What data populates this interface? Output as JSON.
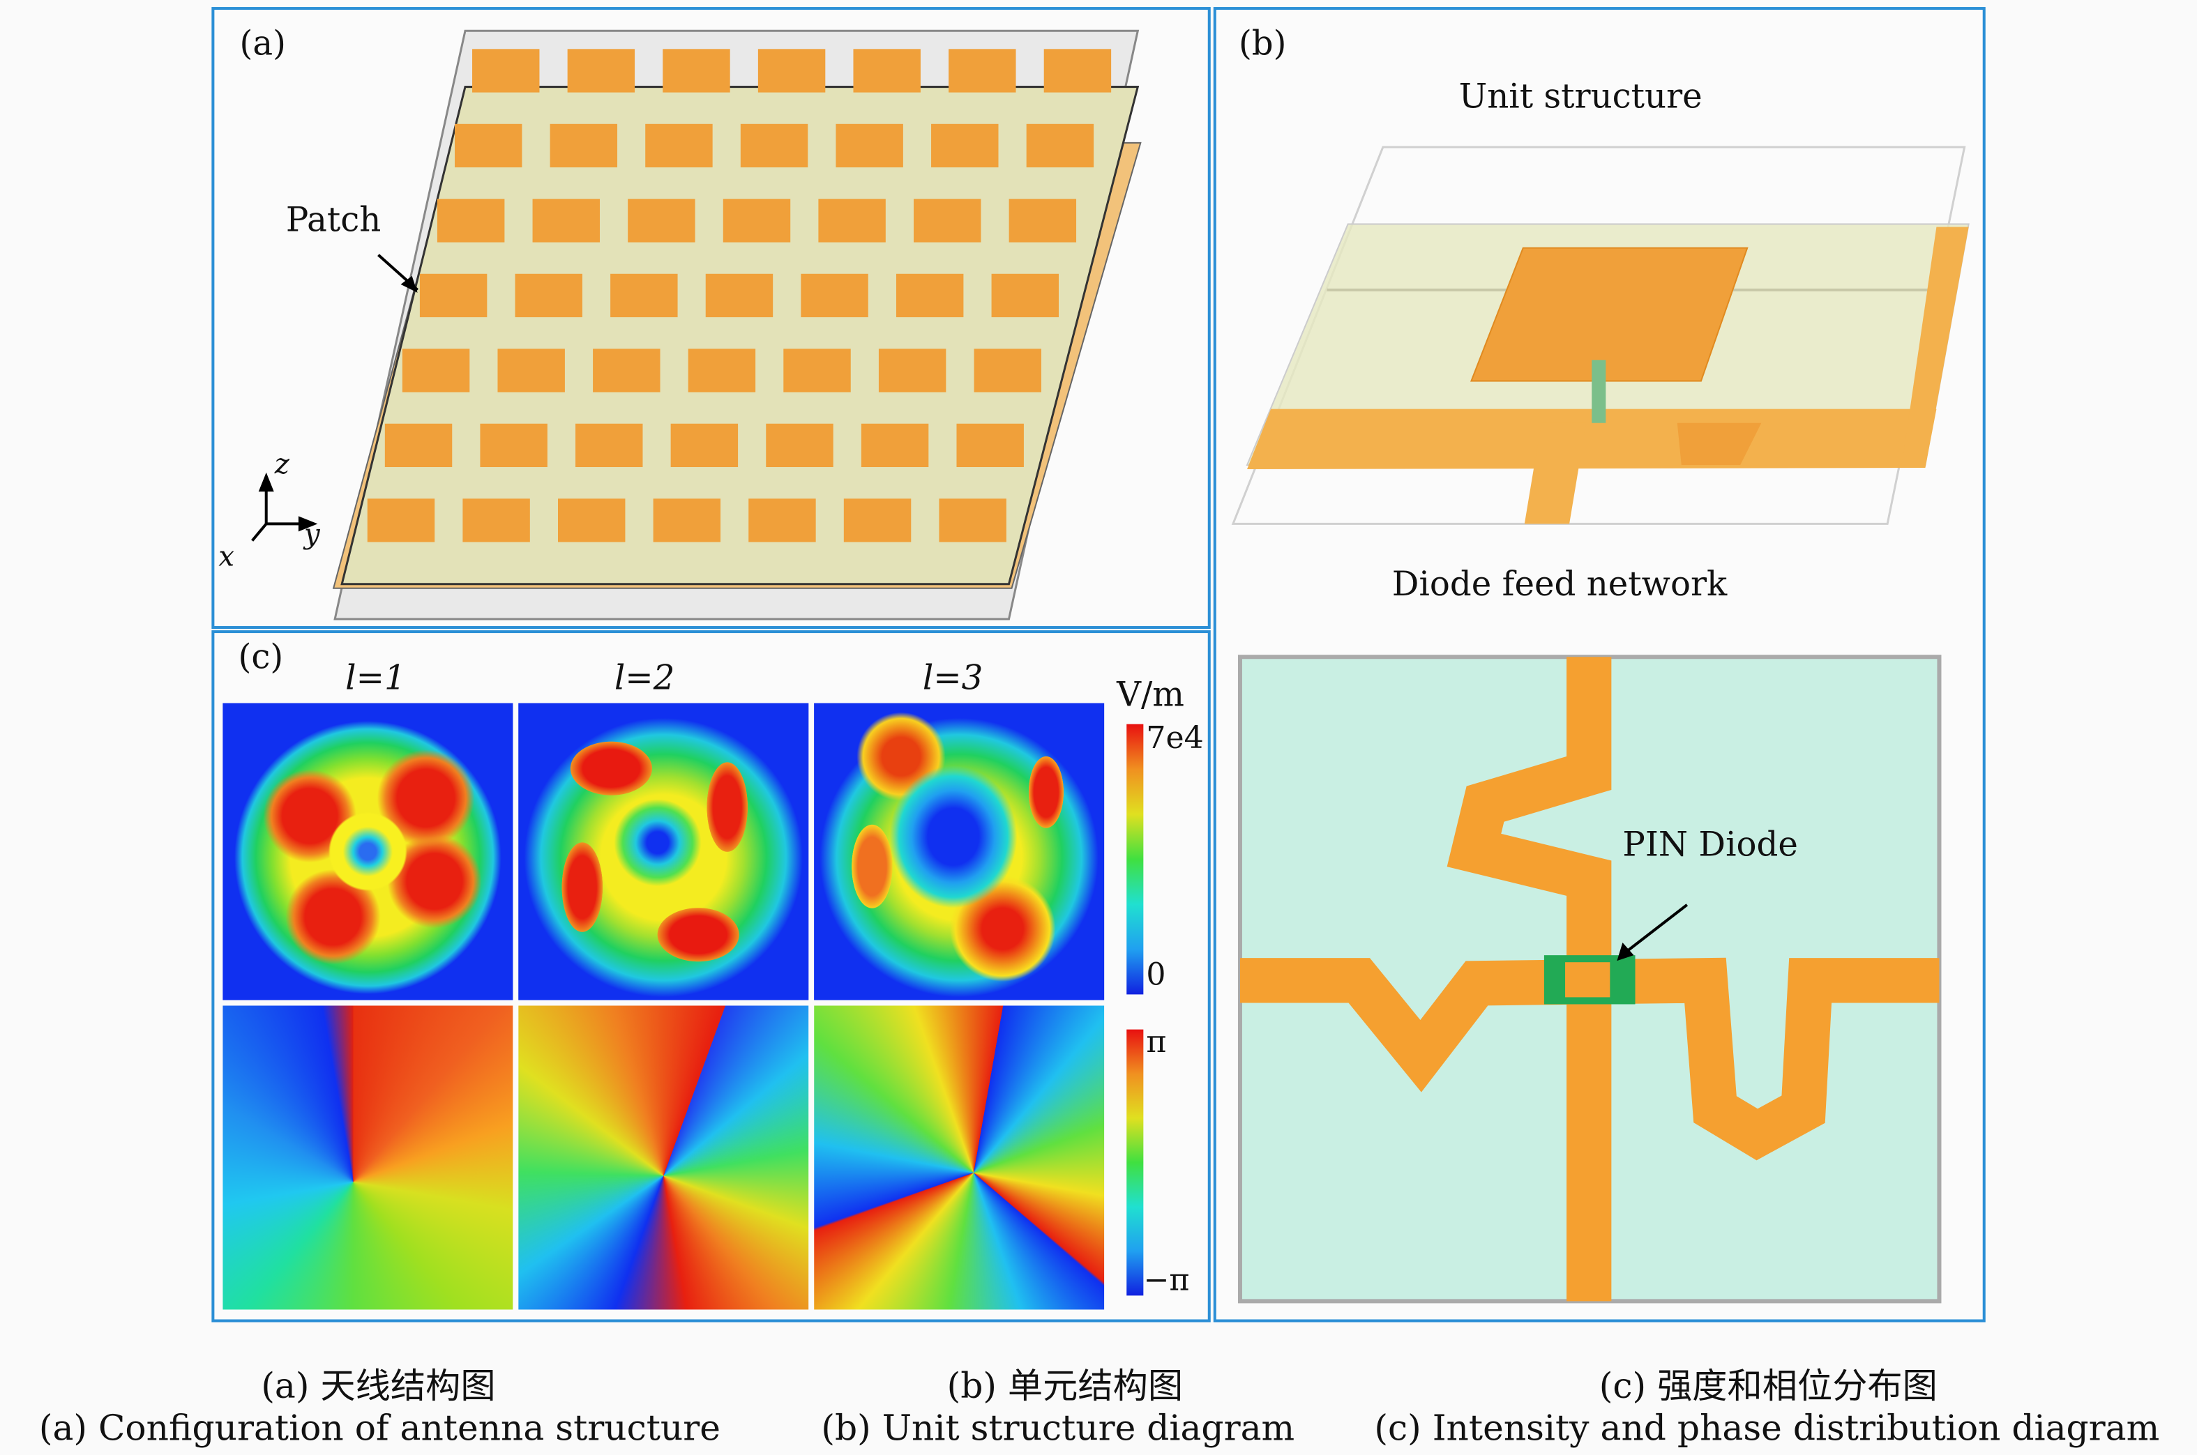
{
  "panel_a": {
    "label": "(a)",
    "patch_label": "Patch",
    "axes": {
      "x": "x",
      "y": "y",
      "z": "z"
    },
    "patch_grid": {
      "rows": 7,
      "cols": 7
    }
  },
  "panel_b": {
    "label": "(b)",
    "unit_structure_title": "Unit structure",
    "feed_network_title": "Diode feed network",
    "diode_label": "PIN Diode"
  },
  "panel_c": {
    "label": "(c)",
    "columns": [
      "l=1",
      "l=2",
      "l=3"
    ],
    "intensity_colorbar": {
      "unit": "V/m",
      "max": "7e4",
      "min": "0"
    },
    "phase_colorbar": {
      "max": "π",
      "min": "−π"
    }
  },
  "captions": {
    "a_cn": "(a) 天线结构图",
    "b_cn": "(b) 单元结构图",
    "c_cn": "(c) 强度和相位分布图",
    "a_en": "(a) Configuration of antenna structure",
    "b_en": "(b) Unit structure diagram",
    "c_en": "(c) Intensity and phase distribution diagram"
  },
  "colors": {
    "frame": "#2b8fd6",
    "patch": "#f0a03a",
    "substrate": "#e6e8c0",
    "feed_bg": "#c9efe3",
    "diode": "#22aa55"
  }
}
